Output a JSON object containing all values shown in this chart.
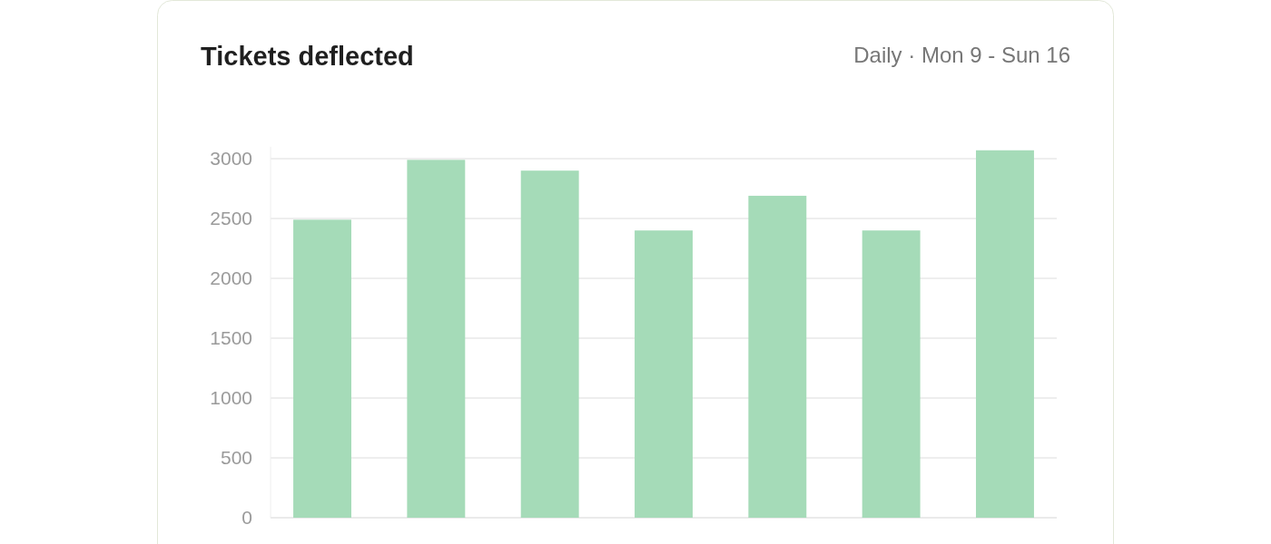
{
  "chart_data": {
    "type": "bar",
    "title": "Tickets deflected",
    "subtitle": "Daily · Mon 9 - Sun 16",
    "categories": [
      null,
      null,
      null,
      null,
      null,
      null,
      null
    ],
    "values": [
      2490,
      2990,
      2900,
      2400,
      2690,
      2400,
      3070
    ],
    "color": "#a5dbb8",
    "ylim": [
      0,
      3100
    ],
    "yticks": [
      0,
      500,
      1000,
      1500,
      2000,
      2500,
      3000
    ],
    "grid": "y"
  }
}
